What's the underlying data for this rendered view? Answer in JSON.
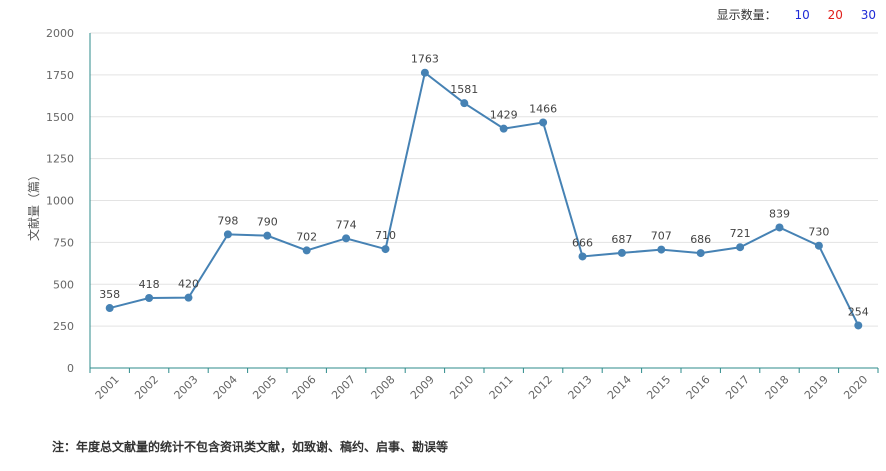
{
  "display_count": {
    "label": "显示数量：",
    "options": [
      {
        "label": "10",
        "color": "#1f2bd6"
      },
      {
        "label": "20",
        "color": "#e0201b"
      },
      {
        "label": "30",
        "color": "#1f2bd6"
      }
    ]
  },
  "note": "注：年度总文献量的统计不包含资讯类文献，如致谢、稿约、启事、勘误等",
  "chart_data": {
    "type": "line",
    "title": "",
    "xlabel": "",
    "ylabel": "文献量（篇）",
    "ylim": [
      0,
      2000
    ],
    "yticks": [
      0,
      250,
      500,
      750,
      1000,
      1250,
      1500,
      1750,
      2000
    ],
    "grid": true,
    "line_color": "#4682b4",
    "axis_color": "#2e8b8b",
    "x": [
      "2001",
      "2002",
      "2003",
      "2004",
      "2005",
      "2006",
      "2007",
      "2008",
      "2009",
      "2010",
      "2011",
      "2012",
      "2013",
      "2014",
      "2015",
      "2016",
      "2017",
      "2018",
      "2019",
      "2020"
    ],
    "series": [
      {
        "values": [
          358,
          418,
          420,
          798,
          790,
          702,
          774,
          710,
          1763,
          1581,
          1429,
          1466,
          666,
          687,
          707,
          686,
          721,
          839,
          730,
          254
        ]
      }
    ]
  }
}
